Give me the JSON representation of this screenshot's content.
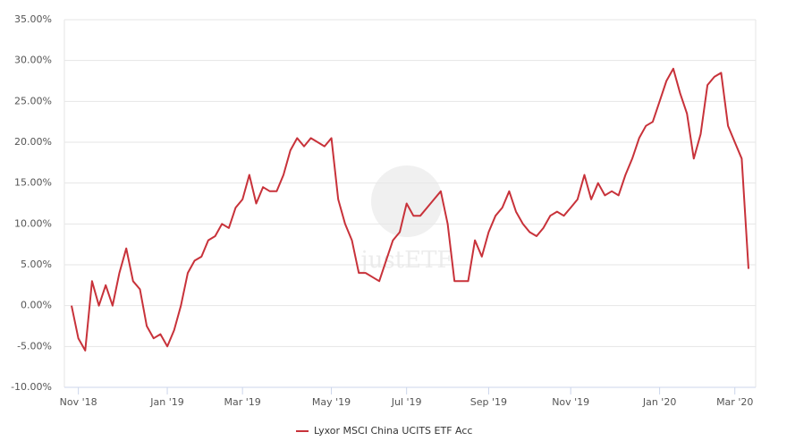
{
  "chart_data": {
    "type": "line",
    "watermark": "justETF",
    "categories": [
      null,
      "Nov '18",
      null,
      null,
      null,
      null,
      null,
      null,
      null,
      null,
      null,
      null,
      null,
      null,
      "Jan '19",
      null,
      null,
      null,
      null,
      null,
      null,
      null,
      null,
      null,
      null,
      "Mar '19",
      null,
      null,
      null,
      null,
      null,
      null,
      null,
      null,
      null,
      null,
      null,
      null,
      "May '19",
      null,
      null,
      null,
      null,
      null,
      null,
      null,
      null,
      null,
      null,
      "Jul '19",
      null,
      null,
      null,
      null,
      null,
      null,
      null,
      null,
      null,
      null,
      null,
      "Sep '19",
      null,
      null,
      null,
      null,
      null,
      null,
      null,
      null,
      null,
      null,
      null,
      "Nov '19",
      null,
      null,
      null,
      null,
      null,
      null,
      null,
      null,
      null,
      null,
      null,
      null,
      "Jan '20",
      null,
      null,
      null,
      null,
      null,
      null,
      null,
      null,
      null,
      null,
      "Mar '20",
      null,
      null
    ],
    "series": [
      {
        "name": "Lyxor MSCI China UCITS ETF Acc",
        "color": "#c8323a",
        "values": [
          0,
          -4,
          -5.5,
          3,
          0,
          2.5,
          0,
          4,
          7,
          3,
          2,
          -2.5,
          -4,
          -3.5,
          -5,
          -3,
          0,
          4,
          5.5,
          6,
          8,
          8.5,
          10,
          9.5,
          12,
          13,
          16,
          12.5,
          14.5,
          14,
          14,
          16,
          19,
          20.5,
          19.5,
          20.5,
          20,
          19.5,
          20.5,
          13,
          10,
          8,
          4,
          4,
          3.5,
          3,
          5.5,
          8,
          9,
          12.5,
          11,
          11,
          12,
          13,
          14,
          10,
          3,
          3,
          3,
          8,
          6,
          9,
          11,
          12,
          14,
          11.5,
          10,
          9,
          8.5,
          9.5,
          11,
          11.5,
          11,
          12,
          13,
          16,
          13,
          15,
          13.5,
          14,
          13.5,
          16,
          18,
          20.5,
          22,
          22.5,
          25,
          27.5,
          29,
          26,
          23.5,
          18,
          21,
          27,
          28,
          28.5,
          22,
          20,
          18,
          4.5
        ]
      }
    ],
    "ylim": [
      -10,
      35
    ],
    "yticks": [
      {
        "value": -10,
        "label": "-10.00%"
      },
      {
        "value": -5,
        "label": "-5.00%"
      },
      {
        "value": 0,
        "label": "0.00%"
      },
      {
        "value": 5,
        "label": "5.00%"
      },
      {
        "value": 10,
        "label": "10.00%"
      },
      {
        "value": 15,
        "label": "15.00%"
      },
      {
        "value": 20,
        "label": "20.00%"
      },
      {
        "value": 25,
        "label": "25.00%"
      },
      {
        "value": 30,
        "label": "30.00%"
      },
      {
        "value": 35,
        "label": "35.00%"
      }
    ],
    "grid": true,
    "legend": "bottom"
  }
}
